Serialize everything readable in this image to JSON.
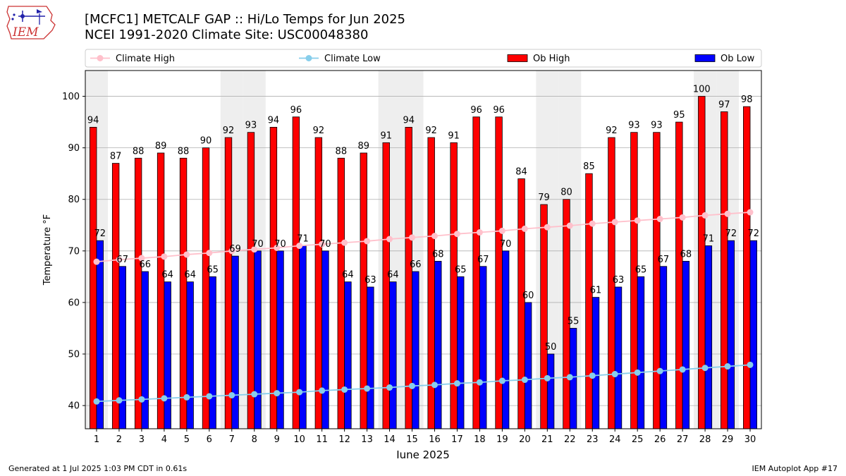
{
  "header": {
    "title_line1": "[MCFC1] METCALF GAP :: Hi/Lo Temps for Jun 2025",
    "title_line2": "NCEI 1991-2020 Climate Site: USC00048380",
    "logo_text": "IEM"
  },
  "footer": {
    "generated": "Generated at 1 Jul 2025 1:03 PM CDT in 0.61s",
    "app": "IEM Autoplot App #17"
  },
  "colors": {
    "ob_high": "#ff0000",
    "ob_low": "#0000ff",
    "climate_high": "#ffc0cb",
    "climate_low": "#87ceeb",
    "weekend_shade": "#eeeeee",
    "grid": "#b0b0b0"
  },
  "chart_data": {
    "type": "bar",
    "xlabel": "June 2025",
    "ylabel": "Temperature °F",
    "ylim": [
      35.5,
      105
    ],
    "yticks": [
      40,
      50,
      60,
      70,
      80,
      90,
      100
    ],
    "grid": "horizontal",
    "legend_position": "top",
    "categories": [
      "1",
      "2",
      "3",
      "4",
      "5",
      "6",
      "7",
      "8",
      "9",
      "10",
      "11",
      "12",
      "13",
      "14",
      "15",
      "16",
      "17",
      "18",
      "19",
      "20",
      "21",
      "22",
      "23",
      "24",
      "25",
      "26",
      "27",
      "28",
      "29",
      "30"
    ],
    "shaded_days": [
      "1",
      "7",
      "8",
      "14",
      "15",
      "21",
      "22",
      "28",
      "29"
    ],
    "series": [
      {
        "name": "Climate High",
        "kind": "line",
        "values": [
          67.9,
          68.3,
          68.6,
          68.9,
          69.3,
          69.6,
          70.0,
          70.3,
          70.6,
          71.0,
          71.3,
          71.6,
          71.9,
          72.3,
          72.6,
          72.9,
          73.3,
          73.6,
          73.9,
          74.3,
          74.6,
          74.9,
          75.3,
          75.6,
          75.9,
          76.2,
          76.5,
          76.9,
          77.2,
          77.5
        ]
      },
      {
        "name": "Climate Low",
        "kind": "line",
        "values": [
          40.8,
          41.0,
          41.2,
          41.4,
          41.6,
          41.8,
          42.0,
          42.2,
          42.4,
          42.6,
          42.9,
          43.1,
          43.3,
          43.5,
          43.8,
          44.0,
          44.3,
          44.5,
          44.8,
          45.0,
          45.3,
          45.5,
          45.8,
          46.1,
          46.4,
          46.7,
          47.0,
          47.3,
          47.6,
          47.9
        ]
      },
      {
        "name": "Ob High",
        "kind": "bar",
        "values": [
          94,
          87,
          88,
          89,
          88,
          90,
          92,
          93,
          94,
          96,
          92,
          88,
          89,
          91,
          94,
          92,
          91,
          96,
          96,
          84,
          79,
          80,
          85,
          92,
          93,
          93,
          95,
          100,
          97,
          98
        ]
      },
      {
        "name": "Ob Low",
        "kind": "bar",
        "values": [
          72,
          67,
          66,
          64,
          64,
          65,
          69,
          70,
          70,
          71,
          70,
          64,
          63,
          64,
          66,
          68,
          65,
          67,
          70,
          60,
          50,
          55,
          61,
          63,
          65,
          67,
          68,
          71,
          72,
          72
        ]
      }
    ]
  }
}
